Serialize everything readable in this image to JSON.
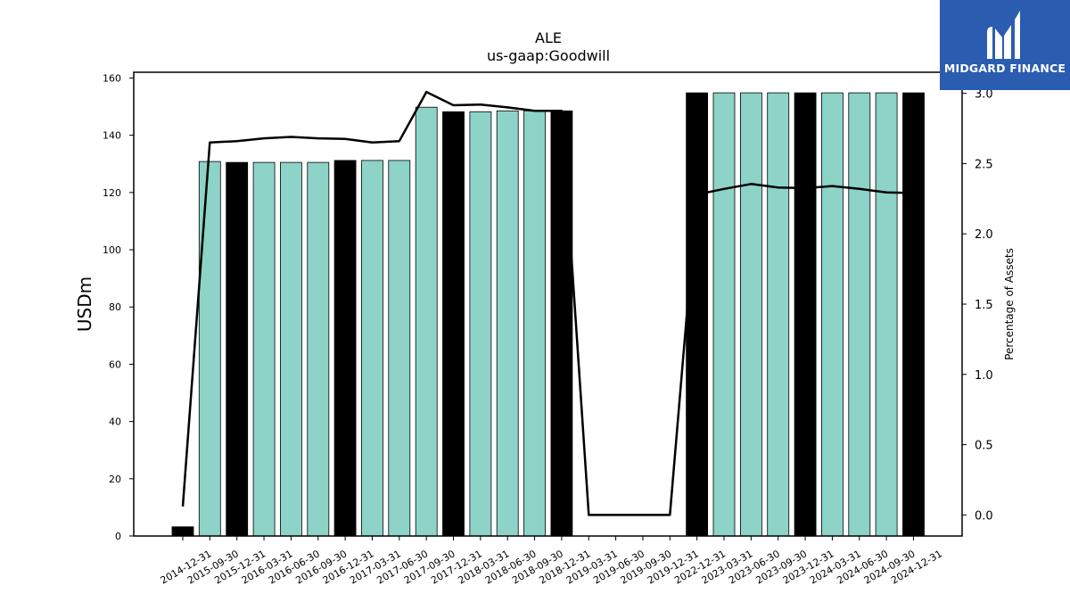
{
  "chart_data": {
    "type": "bar",
    "title": "ALE",
    "subtitle": "us-gaap:Goodwill",
    "ylabel": "USDm",
    "y2label": "Percentage of Assets",
    "ylim": [
      0,
      162
    ],
    "y2lim": [
      -0.15,
      3.15
    ],
    "yticks": [
      0,
      20,
      40,
      60,
      80,
      100,
      120,
      140,
      160
    ],
    "y2ticks": [
      "0.0",
      "0.5",
      "1.0",
      "1.5",
      "2.0",
      "2.5",
      "3.0"
    ],
    "grid": false,
    "colors": {
      "annual": "#000000",
      "quarterly": "#8dd3c7",
      "line": "#000000"
    },
    "categories": [
      "2014-12-31",
      "2015-09-30",
      "2015-12-31",
      "2016-03-31",
      "2016-06-30",
      "2016-09-30",
      "2016-12-31",
      "2017-03-31",
      "2017-06-30",
      "2017-09-30",
      "2017-12-31",
      "2018-03-31",
      "2018-06-30",
      "2018-09-30",
      "2018-12-31",
      "2019-03-31",
      "2019-06-30",
      "2019-09-30",
      "2019-12-31",
      "2022-12-31",
      "2023-03-31",
      "2023-06-30",
      "2023-09-30",
      "2023-12-31",
      "2024-03-31",
      "2024-06-30",
      "2024-09-30",
      "2024-12-31"
    ],
    "values": [
      3.2,
      130.8,
      130.5,
      130.5,
      130.5,
      130.5,
      131.2,
      131.2,
      131.2,
      149.8,
      148.2,
      148.2,
      148.5,
      148.5,
      148.5,
      0,
      0,
      0,
      0,
      154.8,
      154.8,
      154.8,
      154.8,
      154.8,
      154.8,
      154.8,
      154.8,
      154.8
    ],
    "annual_flags": [
      true,
      false,
      true,
      false,
      false,
      false,
      true,
      false,
      false,
      false,
      true,
      false,
      false,
      false,
      true,
      false,
      false,
      false,
      true,
      true,
      false,
      false,
      false,
      true,
      false,
      false,
      false,
      true
    ],
    "pct_of_assets": [
      0.06,
      2.65,
      2.66,
      2.68,
      2.69,
      2.68,
      2.675,
      2.65,
      2.66,
      3.01,
      2.915,
      2.92,
      2.9,
      2.875,
      2.875,
      0.0,
      0.0,
      0.0,
      0.0,
      2.28,
      2.32,
      2.355,
      2.33,
      2.325,
      2.34,
      2.32,
      2.295,
      2.29
    ]
  },
  "logo": {
    "text": "MIDGARD FINANCE",
    "icon": "midgard-logo-icon"
  }
}
